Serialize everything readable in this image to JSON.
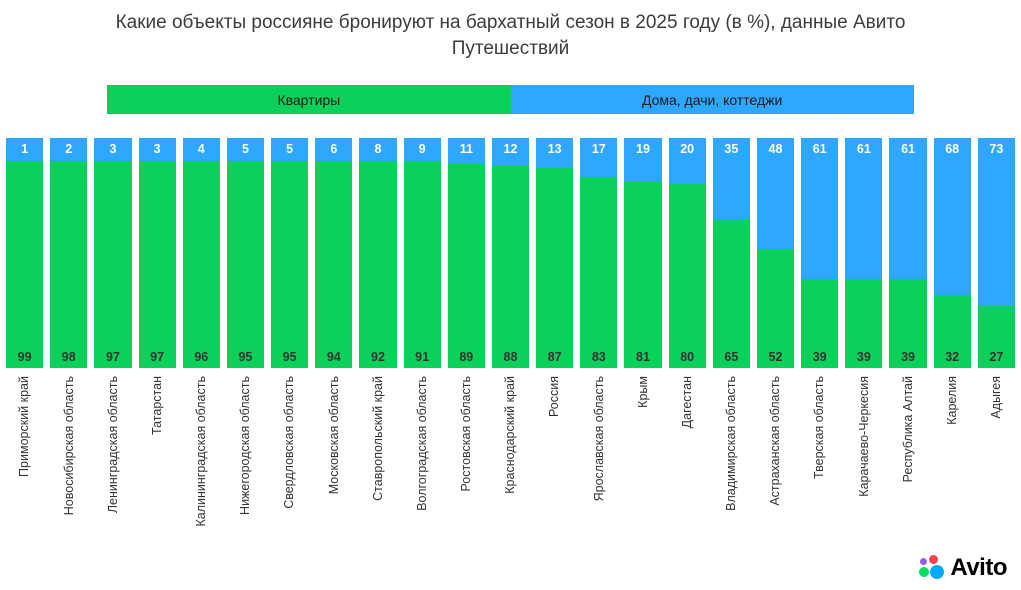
{
  "chart_data": {
    "type": "bar",
    "stacked": true,
    "title": "Какие объекты россияне бронируют на бархатный сезон в 2025 году (в %), данные Авито Путешествий",
    "categories": [
      "Приморский край",
      "Новосибирская область",
      "Ленинградская область",
      "Татарстан",
      "Калининградская область",
      "Нижегородская область",
      "Свердловская область",
      "Московская область",
      "Ставропольский край",
      "Волгоградская область",
      "Ростовская область",
      "Краснодарский край",
      "Россия",
      "Ярославская область",
      "Крым",
      "Дагестан",
      "Владимирская область",
      "Астраханская область",
      "Тверская область",
      "Карачаево-Черкесия",
      "Республика Алтай",
      "Карелия",
      "Адыгея"
    ],
    "series": [
      {
        "name": "Дома, дачи, коттеджи",
        "color": "#2ea7ff",
        "values": [
          1,
          2,
          3,
          3,
          4,
          5,
          5,
          6,
          8,
          9,
          11,
          12,
          13,
          17,
          19,
          20,
          35,
          48,
          61,
          61,
          61,
          68,
          73
        ]
      },
      {
        "name": "Квартиры",
        "color": "#0bd15b",
        "values": [
          99,
          98,
          97,
          97,
          96,
          95,
          95,
          94,
          92,
          91,
          89,
          88,
          87,
          83,
          81,
          80,
          65,
          52,
          39,
          39,
          39,
          32,
          27
        ]
      }
    ],
    "ylim": [
      0,
      100
    ],
    "grid": false,
    "legend_position": "top",
    "value_labels": "inside-top-and-bottom"
  },
  "brand": {
    "name": "Avito",
    "dot_colors": {
      "purple": "#965EEB",
      "red": "#FF4053",
      "green": "#04E061",
      "blue": "#00AAFF"
    }
  }
}
